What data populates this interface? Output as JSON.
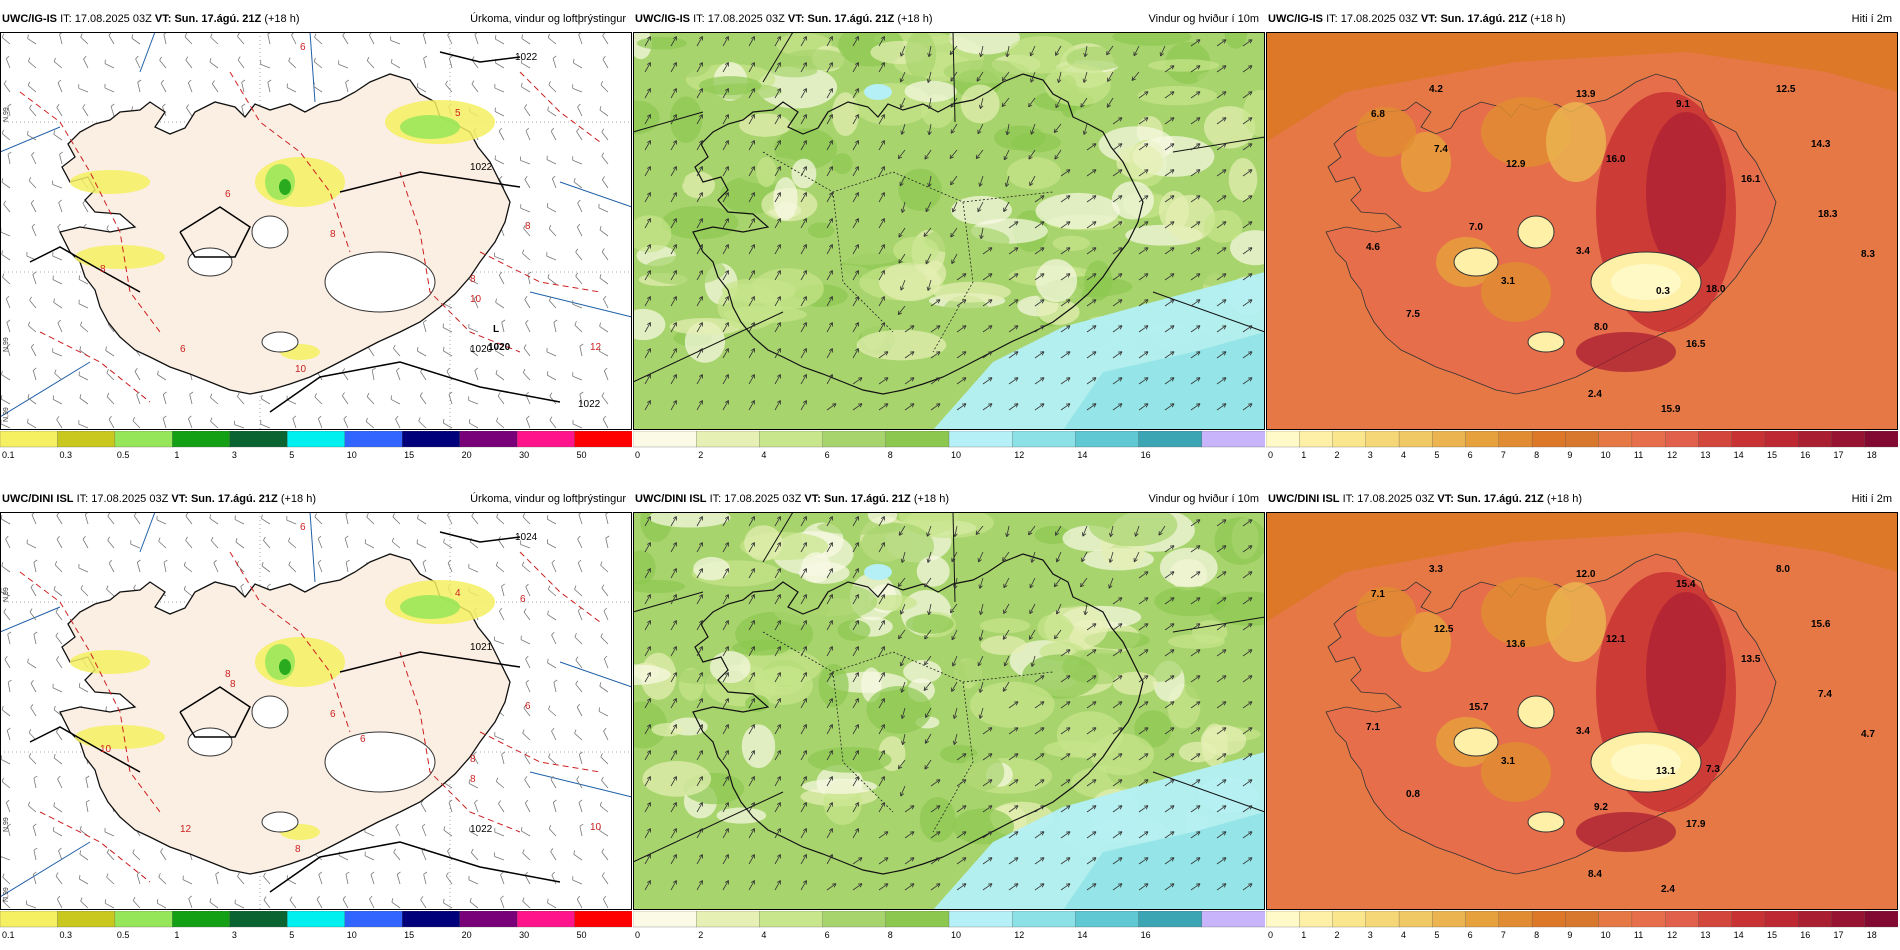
{
  "panels": [
    {
      "id": "igis-precip",
      "model": "UWC/IG-IS",
      "it_label": "IT:",
      "it": "17.08.2025 03Z",
      "vt_label": "VT:",
      "vt": "Sun. 17.ágú. 21Z",
      "lead": "(+18 h)",
      "title": "Úrkoma, vindur og loftþrýstingur",
      "type": "precip",
      "pressure_labels": [
        "1022",
        "1020",
        "1022",
        "1022"
      ],
      "extra_labels": [
        "L",
        "1020"
      ],
      "temp_labels": [
        "6",
        "5",
        "8",
        "8",
        "8",
        "10",
        "10",
        "12",
        "8",
        "6",
        "6"
      ],
      "colorbar": {
        "labels": [
          "0.1",
          "0.3",
          "0.5",
          "1",
          "3",
          "5",
          "10",
          "15",
          "20",
          "30",
          "50"
        ],
        "colors": [
          "#f4f062",
          "#c8c81e",
          "#96e65a",
          "#14a014",
          "#0a6432",
          "#00f0f0",
          "#3264ff",
          "#00007a",
          "#780078",
          "#ff148c",
          "#ff0000"
        ]
      }
    },
    {
      "id": "igis-wind",
      "model": "UWC/IG-IS",
      "it_label": "IT:",
      "it": "17.08.2025 03Z",
      "vt_label": "VT:",
      "vt": "Sun. 17.ágú. 21Z",
      "lead": "(+18 h)",
      "title": "Vindur og hviður í 10m",
      "type": "wind",
      "colorbar": {
        "labels": [
          "0",
          "2",
          "4",
          "6",
          "8",
          "10",
          "12",
          "14",
          "16"
        ],
        "colors": [
          "#fafae6",
          "#e6f0b4",
          "#c8e68c",
          "#a8d46e",
          "#8cc850",
          "#b4f0f5",
          "#8ce1e6",
          "#5fc8d2",
          "#3ca5b4",
          "#c8b4fa"
        ]
      }
    },
    {
      "id": "igis-temp",
      "model": "UWC/IG-IS",
      "it_label": "IT:",
      "it": "17.08.2025 03Z",
      "vt_label": "VT:",
      "vt": "Sun. 17.ágú. 21Z",
      "lead": "(+18 h)",
      "title": "Hiti í 2m",
      "type": "temp",
      "values": [
        "4.2",
        "6.8",
        "7.4",
        "12.9",
        "13.9",
        "16.0",
        "9.1",
        "12.5",
        "14.3",
        "16.1",
        "18.3",
        "8.3",
        "7.0",
        "4.6",
        "3.4",
        "3.1",
        "0.3",
        "18.0",
        "7.5",
        "8.0",
        "16.5",
        "2.4",
        "15.9"
      ],
      "colorbar": {
        "labels": [
          "0",
          "1",
          "2",
          "3",
          "4",
          "5",
          "6",
          "7",
          "8",
          "9",
          "10",
          "11",
          "12",
          "13",
          "14",
          "15",
          "16",
          "17",
          "18"
        ],
        "colors": [
          "#fffac8",
          "#fff0a8",
          "#fae68c",
          "#f5d778",
          "#f0c864",
          "#ebb450",
          "#e6a03c",
          "#e18c32",
          "#dc7828",
          "#d8782e",
          "#e67846",
          "#e66e4b",
          "#e1604b",
          "#d2463c",
          "#c83232",
          "#be2832",
          "#aa1e32",
          "#961432",
          "#820a32"
        ]
      }
    },
    {
      "id": "dini-precip",
      "model": "UWC/DINI ISL",
      "it_label": "IT:",
      "it": "17.08.2025 03Z",
      "vt_label": "VT:",
      "vt": "Sun. 17.ágú. 21Z",
      "lead": "(+18 h)",
      "title": "Úrkoma, vindur og loftþrýstingur",
      "type": "precip",
      "pressure_labels": [
        "1024",
        "1022",
        "1021"
      ],
      "extra_labels": [],
      "temp_labels": [
        "6",
        "4",
        "6",
        "6",
        "8",
        "8",
        "8",
        "10",
        "10",
        "12",
        "8",
        "8",
        "6",
        "6"
      ],
      "colorbar": {
        "labels": [
          "0.1",
          "0.3",
          "0.5",
          "1",
          "3",
          "5",
          "10",
          "15",
          "20",
          "30",
          "50"
        ],
        "colors": [
          "#f4f062",
          "#c8c81e",
          "#96e65a",
          "#14a014",
          "#0a6432",
          "#00f0f0",
          "#3264ff",
          "#00007a",
          "#780078",
          "#ff148c",
          "#ff0000"
        ]
      }
    },
    {
      "id": "dini-wind",
      "model": "UWC/DINI ISL",
      "it_label": "IT:",
      "it": "17.08.2025 03Z",
      "vt_label": "VT:",
      "vt": "Sun. 17.ágú. 21Z",
      "lead": "(+18 h)",
      "title": "Vindur og hviður í 10m",
      "type": "wind",
      "colorbar": {
        "labels": [
          "0",
          "2",
          "4",
          "6",
          "8",
          "10",
          "12",
          "14",
          "16"
        ],
        "colors": [
          "#fafae6",
          "#e6f0b4",
          "#c8e68c",
          "#a8d46e",
          "#8cc850",
          "#b4f0f5",
          "#8ce1e6",
          "#5fc8d2",
          "#3ca5b4",
          "#c8b4fa"
        ]
      }
    },
    {
      "id": "dini-temp",
      "model": "UWC/DINI ISL",
      "it_label": "IT:",
      "it": "17.08.2025 03Z",
      "vt_label": "VT:",
      "vt": "Sun. 17.ágú. 21Z",
      "lead": "(+18 h)",
      "title": "Hiti í 2m",
      "type": "temp",
      "values": [
        "3.3",
        "7.1",
        "12.5",
        "13.6",
        "12.0",
        "12.1",
        "15.4",
        "8.0",
        "15.6",
        "13.5",
        "7.4",
        "4.7",
        "15.7",
        "7.1",
        "3.4",
        "3.1",
        "13.1",
        "7.3",
        "0.8",
        "9.2",
        "17.9",
        "8.4",
        "2.4"
      ],
      "colorbar": {
        "labels": [
          "0",
          "1",
          "2",
          "3",
          "4",
          "5",
          "6",
          "7",
          "8",
          "9",
          "10",
          "11",
          "12",
          "13",
          "14",
          "15",
          "16",
          "17",
          "18"
        ],
        "colors": [
          "#fffac8",
          "#fff0a8",
          "#fae68c",
          "#f5d778",
          "#f0c864",
          "#ebb450",
          "#e6a03c",
          "#e18c32",
          "#dc7828",
          "#d8782e",
          "#e67846",
          "#e66e4b",
          "#e1604b",
          "#d2463c",
          "#c83232",
          "#be2832",
          "#aa1e32",
          "#961432",
          "#820a32"
        ]
      }
    }
  ],
  "lat_labels": [
    "N,99",
    "N,99",
    "N,99"
  ]
}
